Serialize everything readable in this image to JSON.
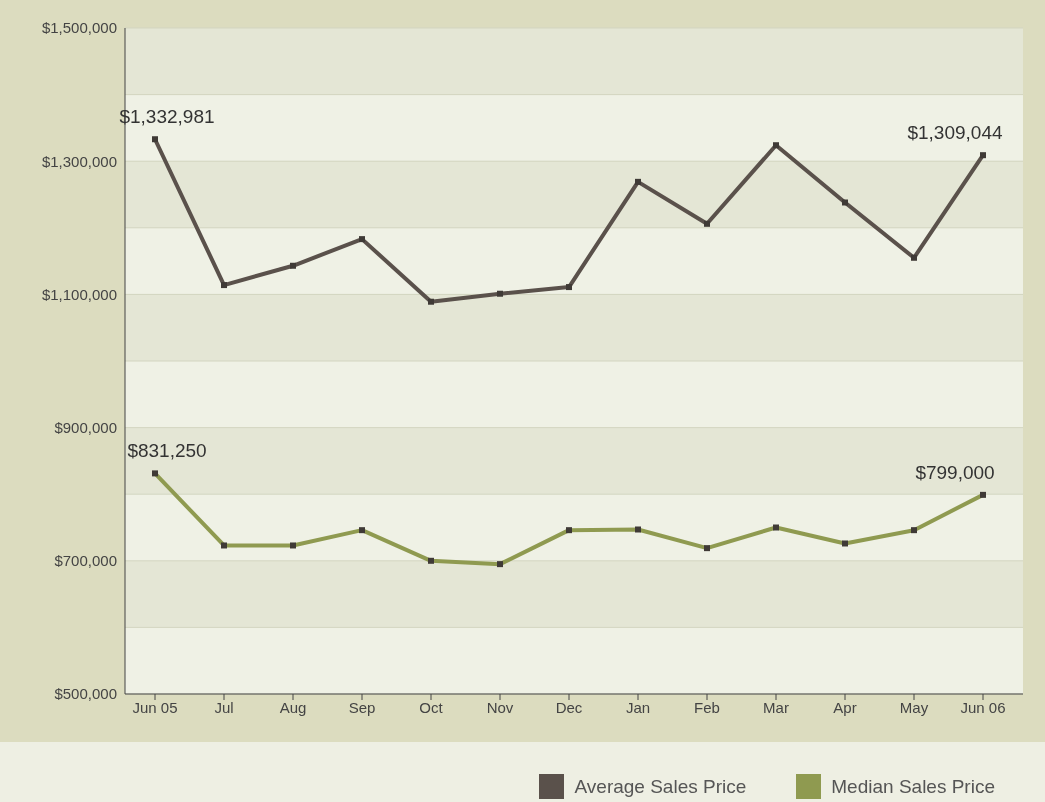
{
  "chart_data": {
    "type": "line",
    "categories": [
      "Jun 05",
      "Jul",
      "Aug",
      "Sep",
      "Oct",
      "Nov",
      "Dec",
      "Jan",
      "Feb",
      "Mar",
      "Apr",
      "May",
      "Jun 06"
    ],
    "series": [
      {
        "name": "Average Sales Price",
        "color": "#5a514b",
        "values": [
          1332981,
          1114000,
          1143000,
          1183000,
          1089000,
          1101000,
          1111000,
          1269000,
          1206000,
          1324000,
          1238000,
          1155000,
          1309044
        ],
        "value_labels": [
          "$1,332,981",
          null,
          null,
          null,
          null,
          null,
          null,
          null,
          null,
          null,
          null,
          null,
          "$1,309,044"
        ]
      },
      {
        "name": "Median Sales Price",
        "color": "#8f9a50",
        "values": [
          831250,
          723000,
          723000,
          746000,
          700000,
          695000,
          746000,
          747000,
          719000,
          750000,
          726000,
          746000,
          799000
        ],
        "value_labels": [
          "$831,250",
          null,
          null,
          null,
          null,
          null,
          null,
          null,
          null,
          null,
          null,
          null,
          "$799,000"
        ]
      }
    ],
    "ylim": [
      500000,
      1500000
    ],
    "yticks": [
      {
        "value": 500000,
        "label": "$500,000"
      },
      {
        "value": 600000,
        "label": null
      },
      {
        "value": 700000,
        "label": "$700,000"
      },
      {
        "value": 800000,
        "label": null
      },
      {
        "value": 900000,
        "label": "$900,000"
      },
      {
        "value": 1000000,
        "label": null
      },
      {
        "value": 1100000,
        "label": "$1,100,000"
      },
      {
        "value": 1200000,
        "label": null
      },
      {
        "value": 1300000,
        "label": "$1,300,000"
      },
      {
        "value": 1400000,
        "label": null
      },
      {
        "value": 1500000,
        "label": "$1,500,000"
      }
    ],
    "grid": "y",
    "legend": "bottom right",
    "marker": "square",
    "line_style": "solid"
  }
}
